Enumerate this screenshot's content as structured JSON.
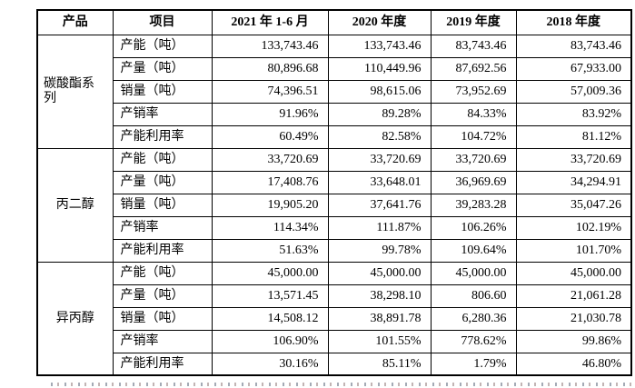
{
  "highlight_color": "#e60000",
  "table": {
    "headers": [
      "产品",
      "项目",
      "2021 年 1-6 月",
      "2020 年度",
      "2019 年度",
      "2018 年度"
    ],
    "groups": [
      {
        "product": "碳酸酯系列",
        "rows": [
          {
            "item": "产能（吨）",
            "values": [
              "133,743.46",
              "133,743.46",
              "83,743.46",
              "83,743.46"
            ]
          },
          {
            "item": "产量（吨）",
            "values": [
              "80,896.68",
              "110,449.96",
              "87,692.56",
              "67,933.00"
            ]
          },
          {
            "item": "销量（吨）",
            "values": [
              "74,396.51",
              "98,615.06",
              "73,952.69",
              "57,009.36"
            ]
          },
          {
            "item": "产销率",
            "values": [
              "91.96%",
              "89.28%",
              "84.33%",
              "83.92%"
            ]
          },
          {
            "item": "产能利用率",
            "values": [
              "60.49%",
              "82.58%",
              "104.72%",
              "81.12%"
            ],
            "highlighted": true
          }
        ]
      },
      {
        "product": "丙二醇",
        "rows": [
          {
            "item": "产能（吨）",
            "values": [
              "33,720.69",
              "33,720.69",
              "33,720.69",
              "33,720.69"
            ]
          },
          {
            "item": "产量（吨）",
            "values": [
              "17,408.76",
              "33,648.01",
              "36,969.69",
              "34,294.91"
            ]
          },
          {
            "item": "销量（吨）",
            "values": [
              "19,905.20",
              "37,641.76",
              "39,283.28",
              "35,047.26"
            ]
          },
          {
            "item": "产销率",
            "values": [
              "114.34%",
              "111.87%",
              "106.26%",
              "102.19%"
            ]
          },
          {
            "item": "产能利用率",
            "values": [
              "51.63%",
              "99.78%",
              "109.64%",
              "101.70%"
            ]
          }
        ]
      },
      {
        "product": "异丙醇",
        "rows": [
          {
            "item": "产能（吨）",
            "values": [
              "45,000.00",
              "45,000.00",
              "45,000.00",
              "45,000.00"
            ]
          },
          {
            "item": "产量（吨）",
            "values": [
              "13,571.45",
              "38,298.10",
              "806.60",
              "21,061.28"
            ]
          },
          {
            "item": "销量（吨）",
            "values": [
              "14,508.12",
              "38,891.78",
              "6,280.36",
              "21,030.78"
            ]
          },
          {
            "item": "产销率",
            "values": [
              "106.90%",
              "101.55%",
              "778.62%",
              "99.86%"
            ]
          },
          {
            "item": "产能利用率",
            "values": [
              "30.16%",
              "85.11%",
              "1.79%",
              "46.80%"
            ]
          }
        ]
      }
    ]
  }
}
